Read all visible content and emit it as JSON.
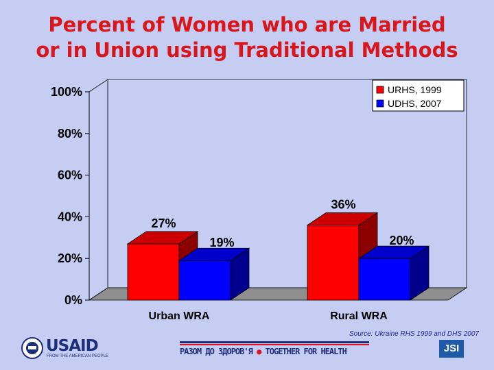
{
  "chart_data": {
    "type": "bar",
    "title": "Percent of Women who are Married or in Union using Traditional Methods",
    "title_lines": [
      "Percent of Women who are Married",
      "or in Union using Traditional Methods"
    ],
    "categories": [
      "Urban WRA",
      "Rural WRA"
    ],
    "series": [
      {
        "name": "URHS, 1999",
        "values": [
          27,
          36
        ],
        "labels": [
          "27%",
          "36%"
        ],
        "color": "#ff0000"
      },
      {
        "name": "UDHS, 2007",
        "values": [
          19,
          20
        ],
        "labels": [
          "19%",
          "20%"
        ],
        "color": "#0000ff"
      }
    ],
    "y_ticks": [
      "0%",
      "20%",
      "40%",
      "60%",
      "80%",
      "100%"
    ],
    "ylim": [
      0,
      100
    ],
    "legend_position": "top-right",
    "grid": false
  },
  "footer": {
    "source": "Source: Ukraine RHS 1999 and DHS 2007",
    "usaid_name": "USAID",
    "usaid_tagline": "FROM THE AMERICAN PEOPLE",
    "banner_left": "РАЗОМ ДО ЗДОРОВ'Я",
    "banner_right": "TOGETHER FOR HEALTH",
    "jsi": "JSI"
  }
}
